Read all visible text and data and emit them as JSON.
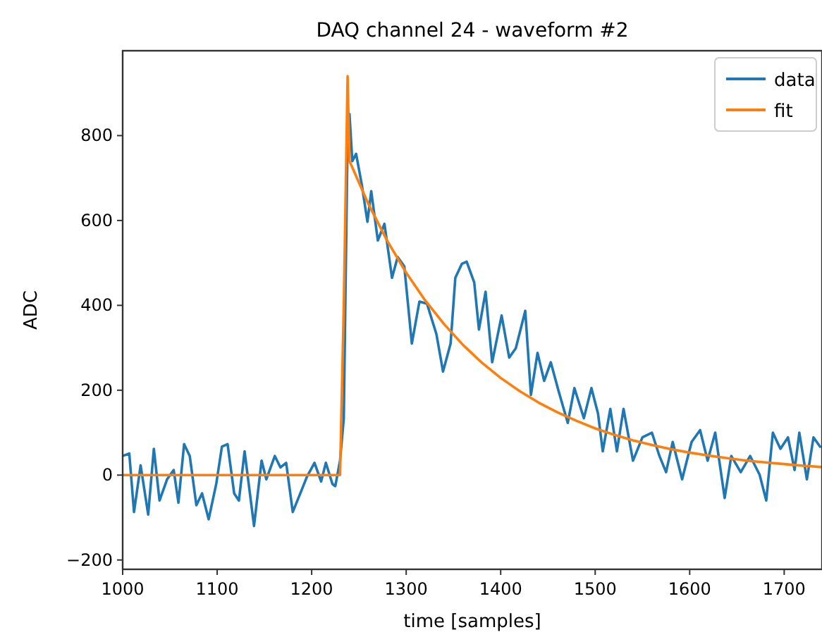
{
  "chart_data": {
    "type": "line",
    "title": "DAQ channel 24 - waveform #2",
    "xlabel": "time [samples]",
    "ylabel": "ADC",
    "xlim": [
      1000,
      1740
    ],
    "ylim": [
      -222,
      1000
    ],
    "xticks": [
      1000,
      1100,
      1200,
      1300,
      1400,
      1500,
      1600,
      1700
    ],
    "yticks": [
      {
        "value": -200,
        "label": "−200"
      },
      0,
      200,
      400,
      600,
      800
    ],
    "grid": false,
    "legend": "top right",
    "line_style": "solid",
    "marker": "none",
    "series": [
      {
        "name": "data",
        "color": "#1f77b4",
        "x": [
          1000,
          1007,
          1012,
          1019,
          1027,
          1033,
          1039,
          1047,
          1054,
          1059,
          1065,
          1071,
          1078,
          1084,
          1091,
          1099,
          1105,
          1111,
          1118,
          1123,
          1129,
          1139,
          1147,
          1152,
          1161,
          1167,
          1173,
          1180,
          1188,
          1195,
          1203,
          1210,
          1215,
          1222,
          1225,
          1230,
          1234,
          1238,
          1240,
          1243,
          1247,
          1253,
          1259,
          1263,
          1270,
          1277,
          1285,
          1291,
          1298,
          1306,
          1314,
          1322,
          1332,
          1339,
          1347,
          1352,
          1359,
          1364,
          1372,
          1377,
          1384,
          1391,
          1401,
          1409,
          1416,
          1426,
          1432,
          1439,
          1446,
          1453,
          1461,
          1471,
          1478,
          1488,
          1496,
          1503,
          1508,
          1516,
          1523,
          1530,
          1540,
          1550,
          1560,
          1568,
          1575,
          1582,
          1592,
          1602,
          1611,
          1619,
          1627,
          1637,
          1644,
          1654,
          1664,
          1674,
          1681,
          1688,
          1696,
          1704,
          1711,
          1716,
          1724,
          1731,
          1738
        ],
        "values": [
          45,
          51,
          -87,
          23,
          -93,
          62,
          -60,
          -10,
          12,
          -65,
          73,
          45,
          -71,
          -43,
          -104,
          -21,
          67,
          73,
          -43,
          -60,
          56,
          -120,
          34,
          -10,
          45,
          18,
          29,
          -87,
          -43,
          -4,
          29,
          -15,
          29,
          -21,
          -26,
          34,
          134,
          796,
          851,
          740,
          757,
          685,
          597,
          669,
          553,
          592,
          465,
          514,
          492,
          310,
          409,
          404,
          332,
          244,
          310,
          465,
          498,
          503,
          454,
          343,
          432,
          266,
          376,
          277,
          299,
          387,
          189,
          288,
          222,
          266,
          200,
          123,
          205,
          134,
          205,
          145,
          56,
          156,
          56,
          156,
          34,
          89,
          100,
          45,
          7,
          78,
          -10,
          78,
          106,
          34,
          100,
          -54,
          45,
          7,
          45,
          1,
          -60,
          100,
          62,
          89,
          12,
          100,
          -10,
          89,
          67
        ]
      },
      {
        "name": "fit",
        "color": "#ff7f0e",
        "x": [
          1000,
          1230,
          1234,
          1238,
          1240,
          1260,
          1280,
          1300,
          1320,
          1340,
          1360,
          1380,
          1400,
          1420,
          1440,
          1460,
          1480,
          1500,
          1520,
          1540,
          1560,
          1580,
          1600,
          1620,
          1640,
          1660,
          1680,
          1700,
          1720,
          1740
        ],
        "values": [
          0,
          0,
          400,
          940,
          740,
          639,
          552,
          477,
          412,
          356,
          307,
          265,
          229,
          198,
          171,
          148,
          128,
          110,
          95,
          82,
          71,
          61,
          53,
          46,
          40,
          34,
          30,
          26,
          22,
          19
        ]
      }
    ]
  }
}
